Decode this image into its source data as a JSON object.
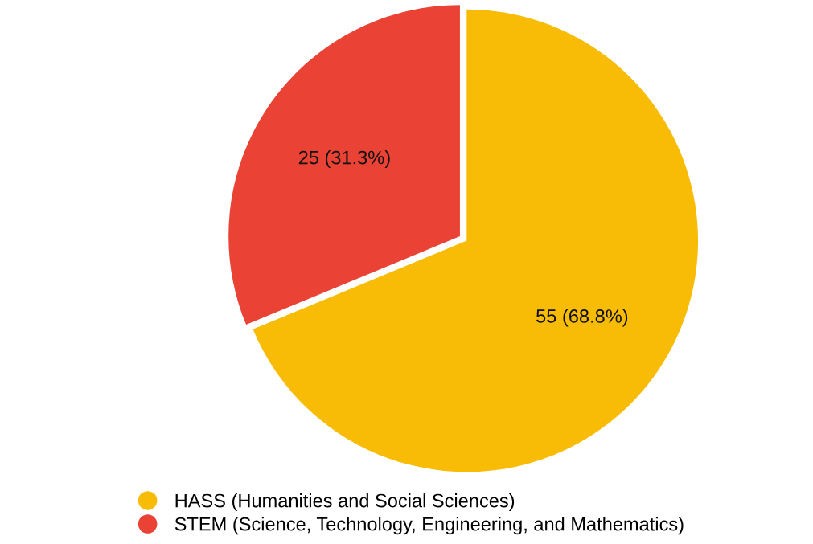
{
  "chart_data": {
    "type": "pie",
    "categories": [
      "HASS (Humanities and Social Sciences)",
      "STEM (Science, Technology, Engineering, and Mathematics)"
    ],
    "values": [
      55,
      25
    ],
    "colors": [
      "#f9bc06",
      "#ea4335"
    ],
    "value_labels": [
      "55 (68.8%)",
      "25 (31.3%)"
    ],
    "legend": "bottom"
  }
}
